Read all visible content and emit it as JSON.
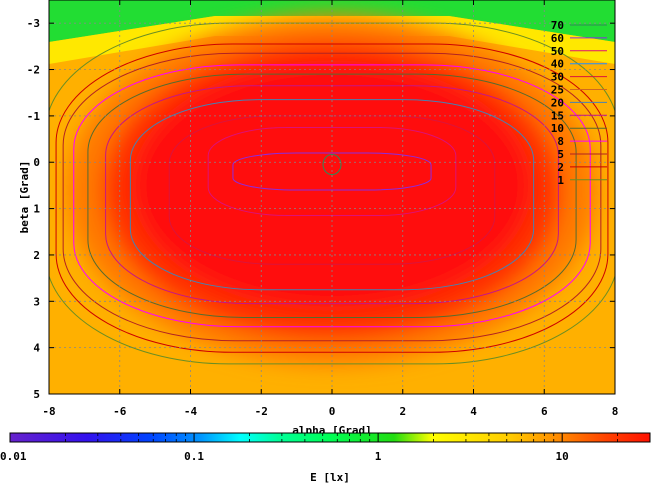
{
  "chart_data": {
    "type": "heatmap",
    "title": "",
    "xlabel": "alpha [Grad]",
    "ylabel": "beta [Grad]",
    "xlim": [
      -8,
      8
    ],
    "ylim": [
      -3.5,
      5
    ],
    "y_axis_inverted": true,
    "grid": true,
    "x_ticks": [
      -8,
      -6,
      -4,
      -2,
      0,
      2,
      4,
      6,
      8
    ],
    "y_ticks": [
      -3,
      -2,
      -1,
      0,
      1,
      2,
      3,
      4,
      5
    ],
    "x_tick_labels": [
      "-8",
      "-6",
      "-4",
      "-2",
      "0",
      "2",
      "4",
      "6",
      "8"
    ],
    "y_tick_labels": [
      "-3",
      "-2",
      "-1",
      "0",
      "1",
      "2",
      "3",
      "4",
      "5"
    ],
    "colorbar": {
      "label": "E [lx]",
      "scale": "log",
      "range": [
        0.01,
        30
      ],
      "tick_labels": [
        "0.01",
        "0.1",
        "1",
        "10"
      ],
      "tick_values": [
        0.01,
        0.1,
        1,
        10
      ]
    },
    "contours": [
      {
        "level": 70,
        "label": "70",
        "color": "#2e8b57"
      },
      {
        "level": 60,
        "label": "60",
        "color": "#8b2be2"
      },
      {
        "level": 50,
        "label": "50",
        "color": "#dd1177"
      },
      {
        "level": 40,
        "label": "40",
        "color": "#1e90ff"
      },
      {
        "level": 30,
        "label": "30",
        "color": "#dc143c"
      },
      {
        "level": 25,
        "label": "25",
        "color": "#d2691e"
      },
      {
        "level": 20,
        "label": "20",
        "color": "#4682b4"
      },
      {
        "level": 15,
        "label": "15",
        "color": "#c71585"
      },
      {
        "level": 10,
        "label": "10",
        "color": "#556b2f"
      },
      {
        "level": 8,
        "label": "8",
        "color": "#ff00ff"
      },
      {
        "level": 5,
        "label": "5",
        "color": "#b22222"
      },
      {
        "level": 2,
        "label": "2",
        "color": "#cc0000"
      },
      {
        "level": 1,
        "label": "1",
        "color": "#6b8e23"
      }
    ]
  }
}
